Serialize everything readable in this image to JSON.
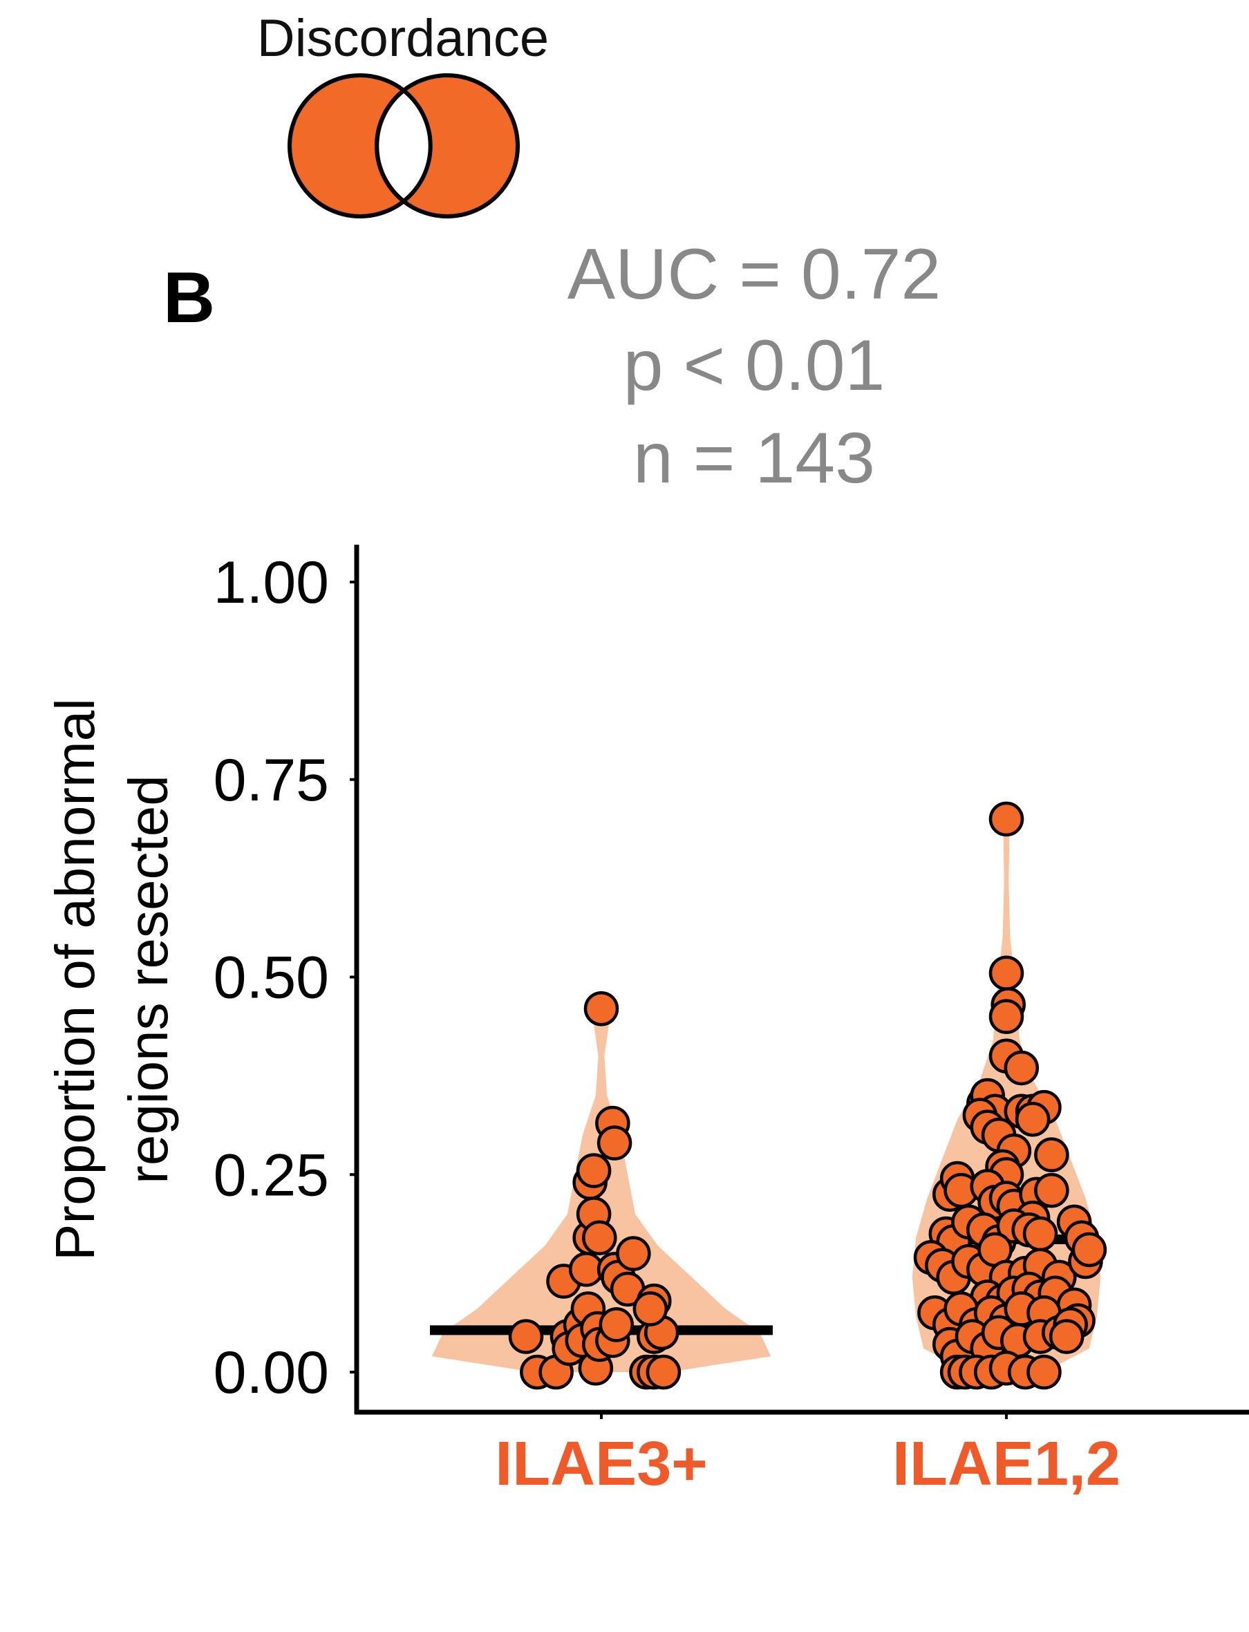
{
  "legend": {
    "title": "Discordance",
    "icon": "venn-diagram-icon",
    "fill_color": "#F26A28"
  },
  "panel_label": "B",
  "stats": {
    "auc": "AUC = 0.72",
    "p": "p < 0.01",
    "n": "n = 143",
    "color": "#888888"
  },
  "chart_data": {
    "type": "scatter",
    "subtype": "violin-with-jittered-points",
    "ylabel_lines": [
      "Proportion of abnormal",
      "regions resected"
    ],
    "xlabel": "",
    "ylim": [
      0,
      1.05
    ],
    "yticks": [
      {
        "value": 0,
        "label": "0.00"
      },
      {
        "value": 0.25,
        "label": "0.25"
      },
      {
        "value": 0.5,
        "label": "0.50"
      },
      {
        "value": 0.75,
        "label": "0.75"
      },
      {
        "value": 1,
        "label": "1.00"
      }
    ],
    "categories": [
      "ILAE3+",
      "ILAE1,2"
    ],
    "category_label_color": "#F05A28",
    "point_color": "#F26A28",
    "violin_color": "#F8C3A0",
    "groups": [
      {
        "name": "ILAE3+",
        "median": 0.053,
        "violin": [
          {
            "y": 0.0,
            "w": 0.18
          },
          {
            "y": 0.02,
            "w": 0.45
          },
          {
            "y": 0.05,
            "w": 0.42
          },
          {
            "y": 0.08,
            "w": 0.33
          },
          {
            "y": 0.12,
            "w": 0.24
          },
          {
            "y": 0.16,
            "w": 0.15
          },
          {
            "y": 0.2,
            "w": 0.09
          },
          {
            "y": 0.25,
            "w": 0.07
          },
          {
            "y": 0.3,
            "w": 0.05
          },
          {
            "y": 0.35,
            "w": 0.015
          },
          {
            "y": 0.4,
            "w": 0.008
          },
          {
            "y": 0.44,
            "w": 0.02
          },
          {
            "y": 0.46,
            "w": 0.01
          }
        ],
        "points": [
          {
            "dx": -0.2,
            "y": 0.045
          },
          {
            "dx": -0.17,
            "y": 0.0
          },
          {
            "dx": -0.12,
            "y": 0.0
          },
          {
            "dx": -0.1,
            "y": 0.115
          },
          {
            "dx": -0.09,
            "y": 0.045
          },
          {
            "dx": -0.085,
            "y": 0.03
          },
          {
            "dx": -0.055,
            "y": 0.06
          },
          {
            "dx": -0.05,
            "y": 0.04
          },
          {
            "dx": -0.04,
            "y": 0.13
          },
          {
            "dx": -0.035,
            "y": 0.08
          },
          {
            "dx": -0.03,
            "y": 0.24
          },
          {
            "dx": -0.03,
            "y": 0.17
          },
          {
            "dx": -0.02,
            "y": 0.255
          },
          {
            "dx": -0.02,
            "y": 0.2
          },
          {
            "dx": -0.015,
            "y": 0.005
          },
          {
            "dx": -0.01,
            "y": 0.055
          },
          {
            "dx": -0.005,
            "y": 0.035
          },
          {
            "dx": 0.0,
            "y": 0.46
          },
          {
            "dx": -0.005,
            "y": 0.17
          },
          {
            "dx": 0.03,
            "y": 0.315
          },
          {
            "dx": 0.03,
            "y": 0.04
          },
          {
            "dx": 0.035,
            "y": 0.29
          },
          {
            "dx": 0.035,
            "y": 0.13
          },
          {
            "dx": 0.045,
            "y": 0.12
          },
          {
            "dx": 0.04,
            "y": 0.06
          },
          {
            "dx": 0.07,
            "y": 0.105
          },
          {
            "dx": 0.085,
            "y": 0.15
          },
          {
            "dx": 0.12,
            "y": 0.0
          },
          {
            "dx": 0.14,
            "y": 0.09
          },
          {
            "dx": 0.14,
            "y": 0.045
          },
          {
            "dx": 0.14,
            "y": 0.0
          },
          {
            "dx": 0.165,
            "y": 0.0
          },
          {
            "dx": 0.16,
            "y": 0.05
          },
          {
            "dx": 0.13,
            "y": 0.08
          }
        ]
      },
      {
        "name": "ILAE1,2",
        "median": 0.168,
        "violin": [
          {
            "y": 0.0,
            "w": 0.1
          },
          {
            "y": 0.03,
            "w": 0.22
          },
          {
            "y": 0.07,
            "w": 0.24
          },
          {
            "y": 0.12,
            "w": 0.25
          },
          {
            "y": 0.17,
            "w": 0.24
          },
          {
            "y": 0.22,
            "w": 0.21
          },
          {
            "y": 0.27,
            "w": 0.17
          },
          {
            "y": 0.32,
            "w": 0.13
          },
          {
            "y": 0.37,
            "w": 0.07
          },
          {
            "y": 0.42,
            "w": 0.035
          },
          {
            "y": 0.48,
            "w": 0.025
          },
          {
            "y": 0.55,
            "w": 0.01
          },
          {
            "y": 0.62,
            "w": 0.006
          },
          {
            "y": 0.68,
            "w": 0.008
          },
          {
            "y": 0.7,
            "w": 0.004
          }
        ],
        "points": [
          {
            "dx": 0.0,
            "y": 0.7
          },
          {
            "dx": 0.0,
            "y": 0.505
          },
          {
            "dx": 0.005,
            "y": 0.465
          },
          {
            "dx": 0.0,
            "y": 0.45
          },
          {
            "dx": 0.0,
            "y": 0.4
          },
          {
            "dx": 0.04,
            "y": 0.385
          },
          {
            "dx": -0.06,
            "y": 0.34
          },
          {
            "dx": -0.05,
            "y": 0.35
          },
          {
            "dx": -0.03,
            "y": 0.33
          },
          {
            "dx": -0.07,
            "y": 0.325
          },
          {
            "dx": 0.04,
            "y": 0.33
          },
          {
            "dx": 0.07,
            "y": 0.33
          },
          {
            "dx": 0.1,
            "y": 0.335
          },
          {
            "dx": 0.07,
            "y": 0.32
          },
          {
            "dx": 0.12,
            "y": 0.275
          },
          {
            "dx": -0.05,
            "y": 0.31
          },
          {
            "dx": -0.02,
            "y": 0.3
          },
          {
            "dx": 0.02,
            "y": 0.28
          },
          {
            "dx": -0.01,
            "y": 0.26
          },
          {
            "dx": 0.0,
            "y": 0.25
          },
          {
            "dx": -0.15,
            "y": 0.225
          },
          {
            "dx": -0.13,
            "y": 0.245
          },
          {
            "dx": -0.12,
            "y": 0.23
          },
          {
            "dx": -0.05,
            "y": 0.235
          },
          {
            "dx": -0.03,
            "y": 0.215
          },
          {
            "dx": 0.0,
            "y": 0.22
          },
          {
            "dx": 0.02,
            "y": 0.21
          },
          {
            "dx": 0.08,
            "y": 0.225
          },
          {
            "dx": 0.12,
            "y": 0.23
          },
          {
            "dx": 0.07,
            "y": 0.195
          },
          {
            "dx": -0.16,
            "y": 0.175
          },
          {
            "dx": -0.14,
            "y": 0.165
          },
          {
            "dx": -0.1,
            "y": 0.19
          },
          {
            "dx": -0.06,
            "y": 0.18
          },
          {
            "dx": -0.02,
            "y": 0.165
          },
          {
            "dx": 0.02,
            "y": 0.185
          },
          {
            "dx": 0.06,
            "y": 0.18
          },
          {
            "dx": 0.09,
            "y": 0.175
          },
          {
            "dx": 0.18,
            "y": 0.19
          },
          {
            "dx": 0.2,
            "y": 0.17
          },
          {
            "dx": -0.2,
            "y": 0.145
          },
          {
            "dx": -0.17,
            "y": 0.135
          },
          {
            "dx": -0.14,
            "y": 0.12
          },
          {
            "dx": -0.1,
            "y": 0.14
          },
          {
            "dx": -0.06,
            "y": 0.13
          },
          {
            "dx": -0.03,
            "y": 0.155
          },
          {
            "dx": 0.0,
            "y": 0.12
          },
          {
            "dx": 0.05,
            "y": 0.125
          },
          {
            "dx": 0.09,
            "y": 0.135
          },
          {
            "dx": 0.14,
            "y": 0.12
          },
          {
            "dx": 0.21,
            "y": 0.14
          },
          {
            "dx": 0.22,
            "y": 0.155
          },
          {
            "dx": -0.05,
            "y": 0.095
          },
          {
            "dx": -0.01,
            "y": 0.09
          },
          {
            "dx": 0.02,
            "y": 0.1
          },
          {
            "dx": 0.06,
            "y": 0.105
          },
          {
            "dx": 0.09,
            "y": 0.095
          },
          {
            "dx": 0.13,
            "y": 0.1
          },
          {
            "dx": 0.18,
            "y": 0.085
          },
          {
            "dx": 0.19,
            "y": 0.065
          },
          {
            "dx": -0.19,
            "y": 0.075
          },
          {
            "dx": -0.15,
            "y": 0.06
          },
          {
            "dx": -0.12,
            "y": 0.08
          },
          {
            "dx": -0.08,
            "y": 0.06
          },
          {
            "dx": -0.04,
            "y": 0.075
          },
          {
            "dx": 0.0,
            "y": 0.065
          },
          {
            "dx": 0.04,
            "y": 0.08
          },
          {
            "dx": 0.1,
            "y": 0.075
          },
          {
            "dx": 0.16,
            "y": 0.055
          },
          {
            "dx": -0.15,
            "y": 0.035
          },
          {
            "dx": -0.13,
            "y": 0.02
          },
          {
            "dx": -0.09,
            "y": 0.045
          },
          {
            "dx": -0.05,
            "y": 0.03
          },
          {
            "dx": -0.02,
            "y": 0.05
          },
          {
            "dx": 0.03,
            "y": 0.04
          },
          {
            "dx": 0.09,
            "y": 0.045
          },
          {
            "dx": 0.14,
            "y": 0.05
          },
          {
            "dx": 0.17,
            "y": 0.06
          },
          {
            "dx": 0.16,
            "y": 0.045
          },
          {
            "dx": -0.13,
            "y": 0.0
          },
          {
            "dx": -0.11,
            "y": 0.0
          },
          {
            "dx": -0.08,
            "y": 0.0
          },
          {
            "dx": -0.04,
            "y": 0.0
          },
          {
            "dx": 0.0,
            "y": 0.005
          },
          {
            "dx": 0.05,
            "y": 0.0
          },
          {
            "dx": 0.1,
            "y": 0.0
          }
        ]
      }
    ]
  }
}
